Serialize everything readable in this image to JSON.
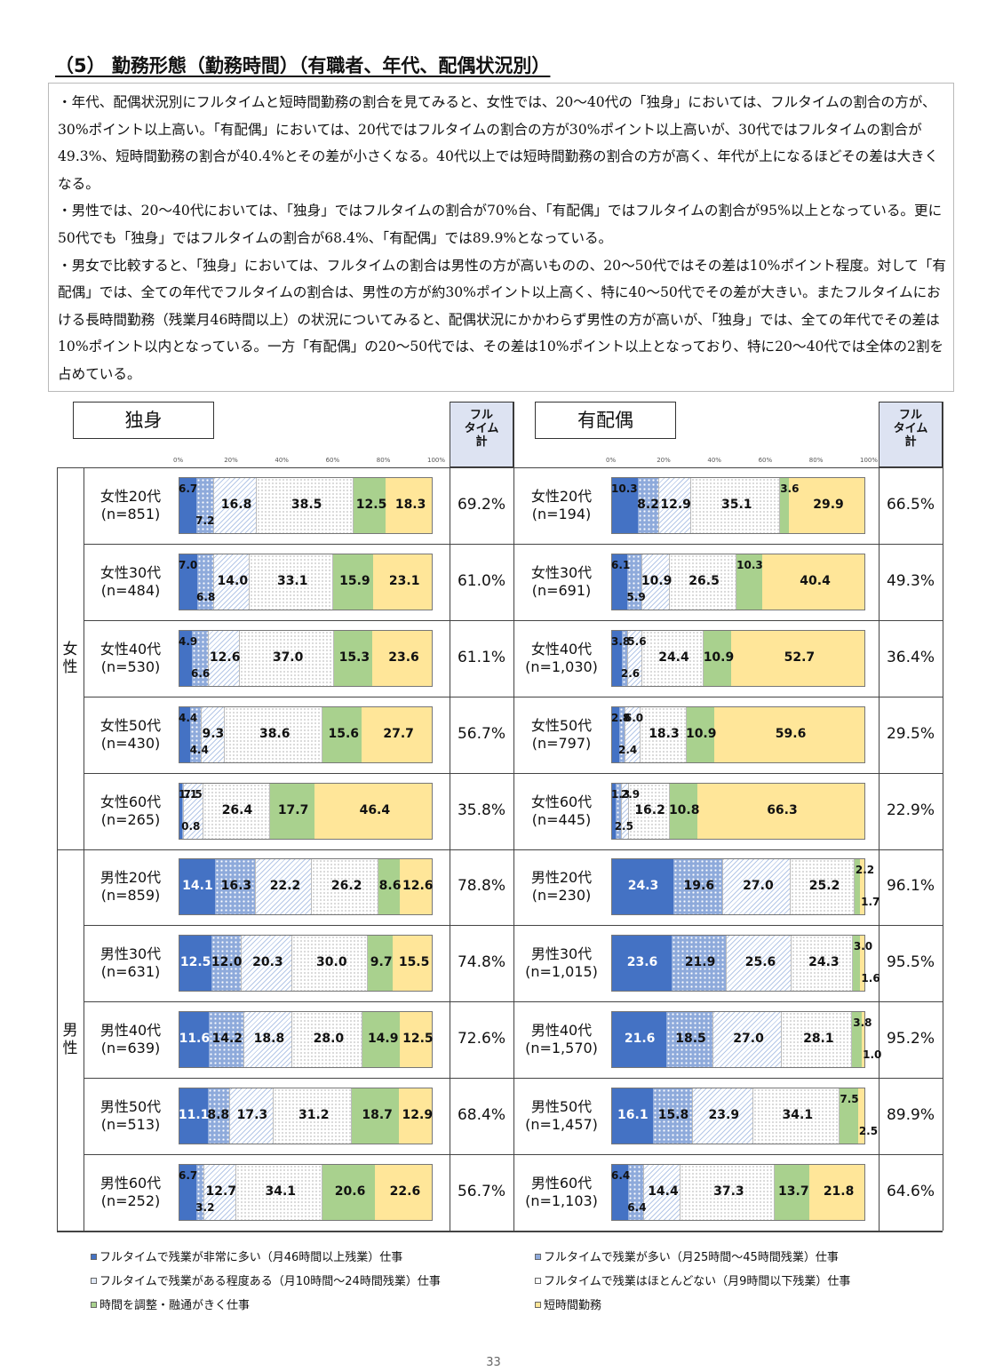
{
  "title": "（5） 勤務形態（勤務時間）（有職者、年代、配偶状況別）",
  "summary": [
    "・年代、配偶状況別にフルタイムと短時間勤務の割合を見てみると、女性では、20～40代の「独身」においては、フルタイムの割合の方が、30%ポイント以上高い。「有配偶」においては、20代ではフルタイムの割合の方が30%ポイント以上高いが、30代ではフルタイムの割合が49.3%、短時間勤務の割合が40.4%とその差が小さくなる。40代以上では短時間勤務の割合の方が高く、年代が上になるほどその差は大きくなる。",
    "・男性では、20～40代においては、「独身」ではフルタイムの割合が70%台、「有配偶」ではフルタイムの割合が95%以上となっている。更に50代でも「独身」ではフルタイムの割合が68.4%、「有配偶」では89.9%となっている。",
    "・男女で比較すると、「独身」においては、フルタイムの割合は男性の方が高いものの、20～50代ではその差は10%ポイント程度。対して「有配偶」では、全ての年代でフルタイムの割合は、男性の方が約30%ポイント以上高く、特に40～50代でその差が大きい。またフルタイムにおける長時間勤務（残業月46時間以上）の状況についてみると、配偶状況にかかわらず男性の方が高いが、「独身」では、全ての年代でその差は10%ポイント以内となっている。一方「有配偶」の20～50代では、その差は10%ポイント以上となっており、特に20～40代では全体の2割を占めている。"
  ],
  "headers": {
    "single": "独身",
    "married": "有配偶",
    "fulltime_total": "フル\nタイム\n計"
  },
  "gender_labels": {
    "female": "女性",
    "male": "男性"
  },
  "axis_ticks": [
    "0%",
    "20%",
    "40%",
    "60%",
    "80%",
    "100%"
  ],
  "colors": [
    "#4472c4",
    "#8eaadb",
    "#b4c7e7",
    "#d9d9d9",
    "#a9d18e",
    "#ffe699"
  ],
  "legend": [
    "フルタイムで残業が非常に多い（月46時間以上残業）仕事",
    "フルタイムで残業が多い（月25時間～45時間残業）仕事",
    "フルタイムで残業がある程度ある（月10時間～24時間残業）仕事",
    "フルタイムで残業はほとんどない（月9時間以下残業）仕事",
    "時間を調整・融通がきく仕事",
    "短時間勤務"
  ],
  "page_number": "33",
  "chart_data": [
    {
      "type": "bar",
      "orientation": "horizontal-stacked-100",
      "title": "独身",
      "xlim": [
        0,
        100
      ],
      "series_names": [
        "フルタイムで残業が非常に多い（月46時間以上残業）仕事",
        "フルタイムで残業が多い（月25時間～45時間残業）仕事",
        "フルタイムで残業がある程度ある（月10時間～24時間残業）仕事",
        "フルタイムで残業はほとんどない（月9時間以下残業）仕事",
        "時間を調整・融通がきく仕事",
        "短時間勤務"
      ],
      "rows": [
        {
          "label": "女性20代",
          "n": "(n=851)",
          "values": [
            6.7,
            7.2,
            16.8,
            38.5,
            12.5,
            18.3
          ],
          "fulltime": "69.2%"
        },
        {
          "label": "女性30代",
          "n": "(n=484)",
          "values": [
            7.0,
            6.8,
            14.0,
            33.1,
            15.9,
            23.1
          ],
          "fulltime": "61.0%"
        },
        {
          "label": "女性40代",
          "n": "(n=530)",
          "values": [
            4.9,
            6.6,
            12.6,
            37.0,
            15.3,
            23.6
          ],
          "fulltime": "61.1%"
        },
        {
          "label": "女性50代",
          "n": "(n=430)",
          "values": [
            4.4,
            4.4,
            9.3,
            38.6,
            15.6,
            27.7
          ],
          "fulltime": "56.7%"
        },
        {
          "label": "女性60代",
          "n": "(n=265)",
          "values": [
            1.1,
            0.8,
            7.5,
            26.4,
            17.7,
            46.4
          ],
          "fulltime": "35.8%"
        },
        {
          "label": "男性20代",
          "n": "(n=859)",
          "values": [
            14.1,
            16.3,
            22.2,
            26.2,
            8.6,
            12.6
          ],
          "fulltime": "78.8%"
        },
        {
          "label": "男性30代",
          "n": "(n=631)",
          "values": [
            12.5,
            12.0,
            20.3,
            30.0,
            9.7,
            15.5
          ],
          "fulltime": "74.8%"
        },
        {
          "label": "男性40代",
          "n": "(n=639)",
          "values": [
            11.6,
            14.2,
            18.8,
            28.0,
            14.9,
            12.5
          ],
          "fulltime": "72.6%"
        },
        {
          "label": "男性50代",
          "n": "(n=513)",
          "values": [
            11.1,
            8.8,
            17.3,
            31.2,
            18.7,
            12.9
          ],
          "fulltime": "68.4%"
        },
        {
          "label": "男性60代",
          "n": "(n=252)",
          "values": [
            6.7,
            3.2,
            12.7,
            34.1,
            20.6,
            22.6
          ],
          "fulltime": "56.7%"
        }
      ]
    },
    {
      "type": "bar",
      "orientation": "horizontal-stacked-100",
      "title": "有配偶",
      "xlim": [
        0,
        100
      ],
      "series_names": [
        "フルタイムで残業が非常に多い（月46時間以上残業）仕事",
        "フルタイムで残業が多い（月25時間～45時間残業）仕事",
        "フルタイムで残業がある程度ある（月10時間～24時間残業）仕事",
        "フルタイムで残業はほとんどない（月9時間以下残業）仕事",
        "時間を調整・融通がきく仕事",
        "短時間勤務"
      ],
      "rows": [
        {
          "label": "女性20代",
          "n": "(n=194)",
          "values": [
            10.3,
            8.2,
            12.9,
            35.1,
            3.6,
            29.9
          ],
          "fulltime": "66.5%"
        },
        {
          "label": "女性30代",
          "n": "(n=691)",
          "values": [
            6.1,
            5.9,
            10.9,
            26.5,
            10.3,
            40.4
          ],
          "fulltime": "49.3%"
        },
        {
          "label": "女性40代",
          "n": "(n=1,030)",
          "values": [
            3.8,
            2.6,
            5.6,
            24.4,
            10.9,
            52.7
          ],
          "fulltime": "36.4%"
        },
        {
          "label": "女性50代",
          "n": "(n=797)",
          "values": [
            2.8,
            2.4,
            6.0,
            18.3,
            10.9,
            59.6
          ],
          "fulltime": "29.5%"
        },
        {
          "label": "女性60代",
          "n": "(n=445)",
          "values": [
            1.3,
            2.5,
            2.9,
            16.2,
            10.8,
            66.3
          ],
          "fulltime": "22.9%"
        },
        {
          "label": "男性20代",
          "n": "(n=230)",
          "values": [
            24.3,
            19.6,
            27.0,
            25.2,
            2.2,
            1.7
          ],
          "fulltime": "96.1%"
        },
        {
          "label": "男性30代",
          "n": "(n=1,015)",
          "values": [
            23.6,
            21.9,
            25.6,
            24.3,
            3.0,
            1.6
          ],
          "fulltime": "95.5%"
        },
        {
          "label": "男性40代",
          "n": "(n=1,570)",
          "values": [
            21.6,
            18.5,
            27.0,
            28.1,
            3.8,
            1.0
          ],
          "fulltime": "95.2%"
        },
        {
          "label": "男性50代",
          "n": "(n=1,457)",
          "values": [
            16.1,
            15.8,
            23.9,
            34.1,
            7.5,
            2.5
          ],
          "fulltime": "89.9%"
        },
        {
          "label": "男性60代",
          "n": "(n=1,103)",
          "values": [
            6.4,
            6.4,
            14.4,
            37.3,
            13.7,
            21.8
          ],
          "fulltime": "64.6%"
        }
      ]
    }
  ]
}
